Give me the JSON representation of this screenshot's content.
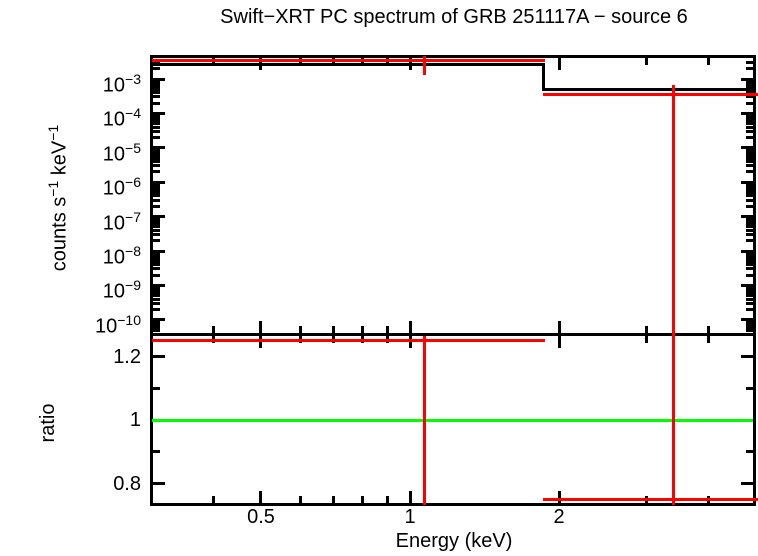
{
  "chart_data": {
    "type": "line",
    "title": "Swift−XRT PC spectrum of GRB 251117A − source 6",
    "xlabel": "Energy (keV)",
    "xscale": "log",
    "xlim": [
      0.3,
      5.0
    ],
    "axes": {
      "x": {
        "major": [
          {
            "v": 0.5,
            "label": "0.5"
          },
          {
            "v": 1,
            "label": "1"
          },
          {
            "v": 2,
            "label": "2"
          }
        ],
        "minor": [
          0.4,
          0.6,
          0.7,
          0.8,
          0.9,
          3,
          4
        ]
      },
      "flux": {
        "major_exponents": [
          -3,
          -4,
          -5,
          -6,
          -7,
          -8,
          -9,
          -10
        ],
        "minor_multipliers": [
          2,
          3,
          4,
          5,
          6,
          7,
          8,
          9
        ],
        "label_parts": [
          {
            "text": "counts s"
          },
          {
            "text": "−1",
            "sup": true
          },
          {
            "text": " keV"
          },
          {
            "text": "−1",
            "sup": true
          }
        ]
      },
      "ratio": {
        "major": [
          {
            "v": 1.2,
            "label": "1.2"
          },
          {
            "v": 1,
            "label": "1"
          },
          {
            "v": 0.8,
            "label": "0.8"
          }
        ],
        "minor": [
          1.1,
          0.9
        ]
      }
    },
    "colors": {
      "model": "#000000",
      "data": "#ff0000",
      "unity": "#00ff00"
    },
    "panels": [
      {
        "id": "spectrum",
        "ylabel": "counts s−1 keV−1",
        "yscale": "log",
        "ylim": [
          3e-11,
          0.0047
        ],
        "model_histogram": {
          "color": "#000000",
          "bins": [
            {
              "e_lo": 0.3,
              "e_hi": 1.86,
              "value": 0.0026
            },
            {
              "e_lo": 1.86,
              "e_hi": 5.0,
              "value": 0.0005
            }
          ]
        },
        "data_points": {
          "color": "#ff0000",
          "points": [
            {
              "e": 1.07,
              "e_lo": 0.3,
              "e_hi": 1.86,
              "value": 0.0034,
              "err_hi": 0.0048,
              "err_lo": 0.0013
            },
            {
              "e": 3.4,
              "e_lo": 1.86,
              "e_hi": 5.0,
              "value": 0.00035,
              "err_hi": 0.00066,
              "err_lo": null
            }
          ]
        }
      },
      {
        "id": "ratio",
        "ylabel": "ratio",
        "yscale": "linear",
        "ylim": [
          0.74,
          1.27
        ],
        "unity_line": {
          "color": "#00ff00",
          "value": 1.0
        },
        "data_points": {
          "color": "#ff0000",
          "points": [
            {
              "e": 1.07,
              "e_lo": 0.3,
              "e_hi": 1.86,
              "value": 1.25,
              "err_hi": null,
              "err_lo": null
            },
            {
              "e": 3.4,
              "e_lo": 1.86,
              "e_hi": 5.0,
              "value": 0.75,
              "err_hi": null,
              "err_lo": null
            }
          ]
        }
      }
    ]
  }
}
